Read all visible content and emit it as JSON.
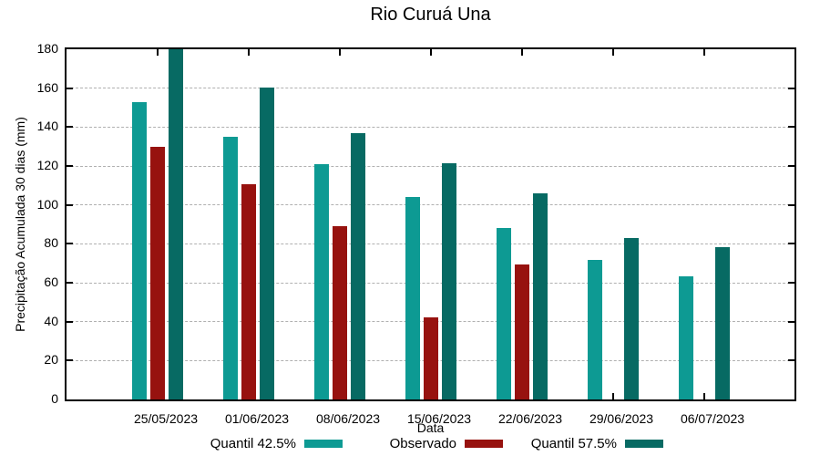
{
  "chart_data": {
    "type": "bar",
    "title": "Rio Curuá Una",
    "xlabel": "Data",
    "ylabel": "Precipitação Acumulada 30 dias (mm)",
    "categories": [
      "25/05/2023",
      "01/06/2023",
      "08/06/2023",
      "15/06/2023",
      "22/06/2023",
      "29/06/2023",
      "06/07/2023"
    ],
    "series": [
      {
        "name": "Quantil 42.5%",
        "color": "#0d9a93",
        "values": [
          153,
          135,
          121,
          104,
          88,
          71.5,
          63.5
        ]
      },
      {
        "name": "Observado",
        "color": "#97120f",
        "values": [
          130,
          110.5,
          89,
          42,
          69.5,
          null,
          null
        ]
      },
      {
        "name": "Quantil 57.5%",
        "color": "#076a63",
        "values": [
          180,
          160.5,
          137,
          121.5,
          106,
          83,
          78.5
        ]
      }
    ],
    "ylim": [
      0,
      180
    ],
    "ytick_step": 20,
    "grid": true,
    "legend_position": "bottom",
    "axis_color": "#000000",
    "grid_color": "#b0b0b0",
    "background_color": "#ffffff"
  }
}
